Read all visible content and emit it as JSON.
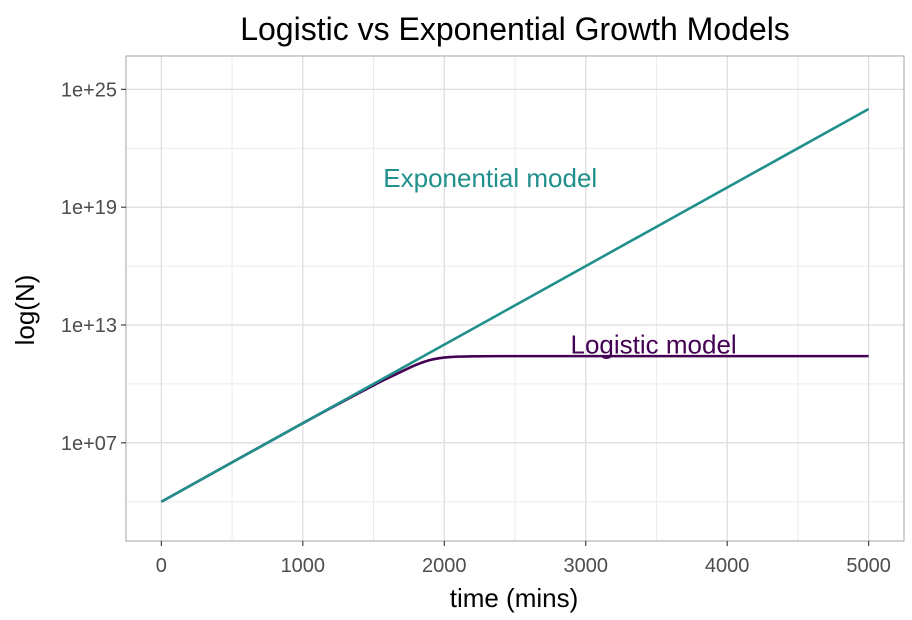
{
  "chart_data": {
    "type": "line",
    "title": "Logistic vs Exponential Growth Models",
    "xlabel": "time (mins)",
    "ylabel": "log(N)",
    "y_scale": "log10",
    "xlim": [
      -250,
      5250
    ],
    "ylim": [
      100.0,
      5e+26
    ],
    "x_ticks": [
      0,
      1000,
      2000,
      3000,
      4000,
      5000
    ],
    "x_tick_labels": [
      "0",
      "1000",
      "2000",
      "3000",
      "4000",
      "5000"
    ],
    "y_ticks": [
      10000000.0,
      10000000000000.0,
      1e+19,
      1e+25
    ],
    "y_tick_labels": [
      "1e+07",
      "1e+13",
      "1e+19",
      "1e+25"
    ],
    "grid": true,
    "legend": "none",
    "series": [
      {
        "name": "Exponential model",
        "color": "#21908C",
        "x": [
          0,
          1000,
          2000,
          3000,
          4000,
          5000
        ],
        "y": [
          10000.0,
          100000000.0,
          1000000000000.0,
          1e+16,
          1e+20,
          1e+24
        ]
      },
      {
        "name": "Logistic model",
        "color": "#440154",
        "x": [
          0,
          1000,
          1500,
          1700,
          1800,
          1900,
          2000,
          2100,
          2200,
          2400,
          3000,
          4000,
          5000
        ],
        "y": [
          10000.0,
          100000000.0,
          8500000000.0,
          43000000000.0,
          93000000000.0,
          165000000000.0,
          220000000000.0,
          245000000000.0,
          253000000000.0,
          260000000000.0,
          260000000000.0,
          260000000000.0,
          260000000000.0
        ]
      }
    ],
    "annotations": [
      {
        "text": "Exponential model",
        "x": 2325,
        "y": 3e+20,
        "color": "#21908C"
      },
      {
        "text": "Logistic model",
        "x": 3480,
        "y": 1000000000000.0,
        "color": "#440154"
      }
    ]
  }
}
